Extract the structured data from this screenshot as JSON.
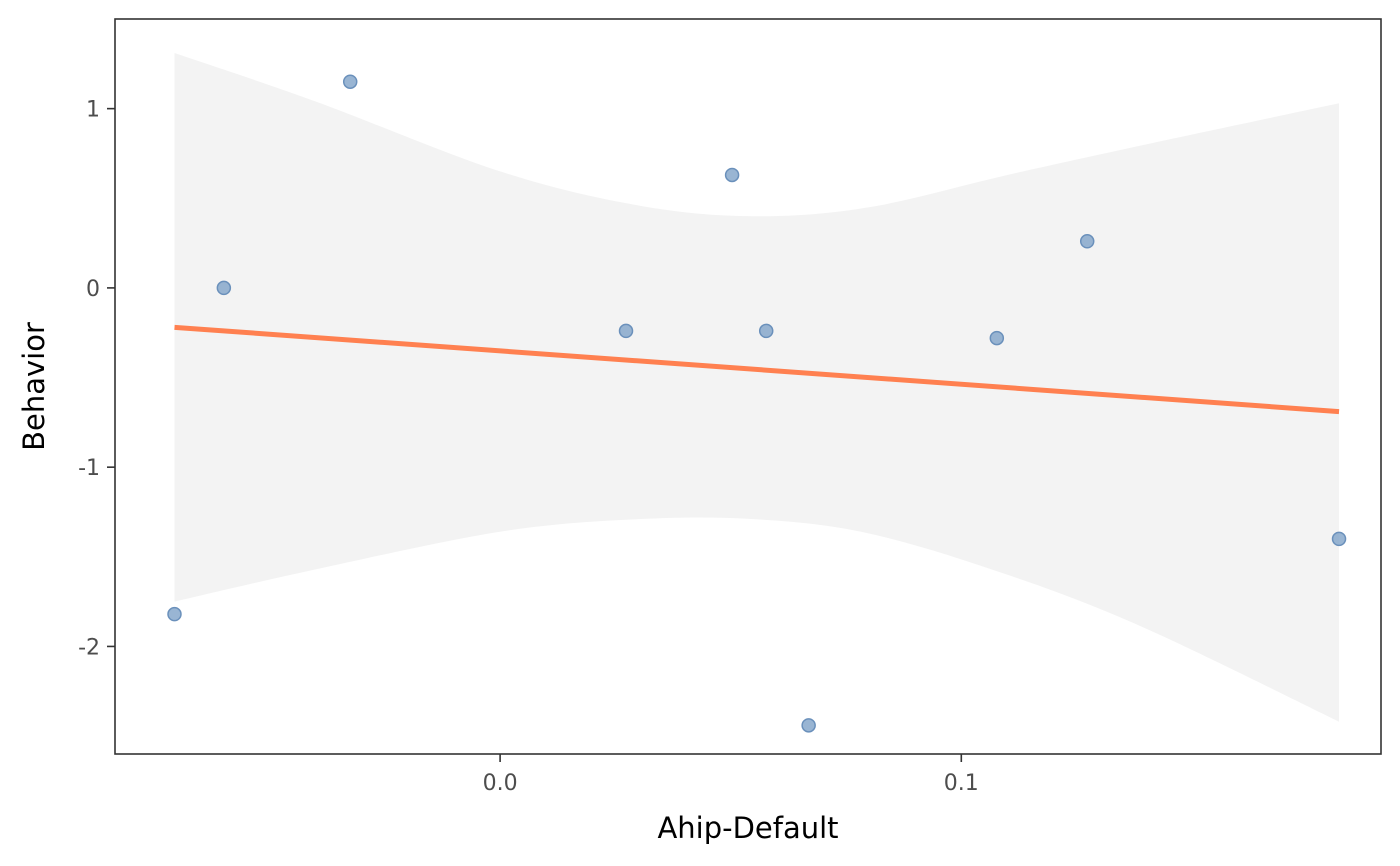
{
  "chart_data": {
    "type": "scatter",
    "title": "",
    "xlabel": "Ahip-Default",
    "ylabel": "Behavior",
    "xlim": [
      -0.0835,
      0.191
    ],
    "ylim": [
      -2.6,
      1.5
    ],
    "x_ticks": [
      {
        "value": 0.0,
        "label": "0.0"
      },
      {
        "value": 0.1,
        "label": "0.1"
      }
    ],
    "y_ticks": [
      {
        "value": 1,
        "label": "1"
      },
      {
        "value": 0,
        "label": "0"
      },
      {
        "value": -1,
        "label": "-1"
      },
      {
        "value": -2,
        "label": "-2"
      }
    ],
    "grid": false,
    "legend": "none",
    "colors": {
      "points": "#7fa3c8",
      "points_stroke": "#6a90bb",
      "fit_line": "#ff8050",
      "confidence_band": "#f3f3f3",
      "panel_border": "#333333"
    },
    "points": [
      {
        "x": -0.0706,
        "y": -1.82
      },
      {
        "x": -0.0599,
        "y": 0.0
      },
      {
        "x": -0.0325,
        "y": 1.15
      },
      {
        "x": 0.0273,
        "y": -0.24
      },
      {
        "x": 0.0503,
        "y": 0.63
      },
      {
        "x": 0.0577,
        "y": -0.24
      },
      {
        "x": 0.0669,
        "y": -2.44
      },
      {
        "x": 0.1077,
        "y": -0.28
      },
      {
        "x": 0.1273,
        "y": 0.26
      },
      {
        "x": 0.1819,
        "y": -1.4
      }
    ],
    "fit_line": [
      {
        "x": -0.0706,
        "y": -0.22
      },
      {
        "x": 0.1819,
        "y": -0.69
      }
    ],
    "confidence_band": [
      {
        "x": -0.0706,
        "lower": -1.75,
        "upper": 1.31
      },
      {
        "x": -0.04,
        "lower": -1.57,
        "upper": 1.04
      },
      {
        "x": 0.0,
        "lower": -1.36,
        "upper": 0.65
      },
      {
        "x": 0.03,
        "lower": -1.29,
        "upper": 0.46
      },
      {
        "x": 0.055,
        "lower": -1.29,
        "upper": 0.4
      },
      {
        "x": 0.08,
        "lower": -1.37,
        "upper": 0.45
      },
      {
        "x": 0.11,
        "lower": -1.6,
        "upper": 0.63
      },
      {
        "x": 0.14,
        "lower": -1.9,
        "upper": 0.8
      },
      {
        "x": 0.1819,
        "lower": -2.42,
        "upper": 1.03
      }
    ]
  }
}
